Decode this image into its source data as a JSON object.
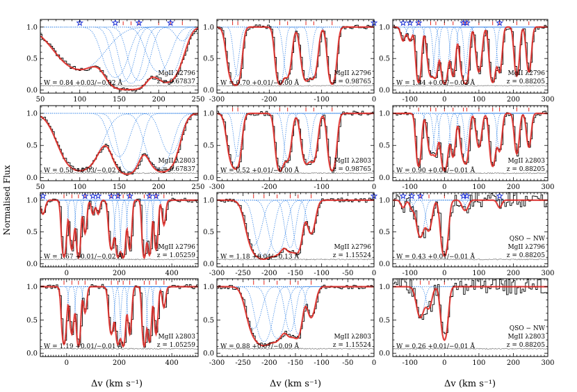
{
  "figure": {
    "ylabel": "Normalised Flux",
    "xlabel": "Δv (km s⁻¹)",
    "colors": {
      "data": "#000000",
      "model": "#e3261f",
      "component": "#1f77e4",
      "star": "#1a2fd6",
      "error": "#888888"
    }
  },
  "chart_data": [
    {
      "type": "line",
      "id": "p11",
      "ion": "MgII λ2796",
      "z_label": "z = 0.67837",
      "W_label": "W = 0.84 +0.03/−0.02 Å",
      "xlim": [
        50,
        250
      ],
      "xticks": [
        50,
        100,
        150,
        200,
        250
      ],
      "ylim": [
        -0.05,
        1.12
      ],
      "yticks": [
        0.0,
        0.5,
        1.0
      ],
      "components": [
        {
          "v": 100,
          "d": 0.45,
          "w": 25,
          "star": true,
          "tick": false
        },
        {
          "v": 145,
          "d": 0.65,
          "w": 12,
          "star": true,
          "tick": false
        },
        {
          "v": 155,
          "d": 0.8,
          "w": 10,
          "star": false,
          "tick": true
        },
        {
          "v": 165,
          "d": 0.9,
          "w": 10,
          "star": false,
          "tick": true
        },
        {
          "v": 175,
          "d": 0.75,
          "w": 10,
          "star": true,
          "tick": true
        },
        {
          "v": 200,
          "d": 0.5,
          "w": 12,
          "star": false,
          "tick": true
        },
        {
          "v": 215,
          "d": 0.55,
          "w": 10,
          "star": true,
          "tick": true
        },
        {
          "v": 230,
          "d": 0.1,
          "w": 8,
          "star": false,
          "tick": true
        }
      ],
      "show_xticklabels": true,
      "show_ylabel_ticks": true
    },
    {
      "type": "line",
      "id": "p12",
      "ion": "MgII λ2796",
      "z_label": "z = 0.98765",
      "W_label": "W = 0.70 +0.01/−0.00 Å",
      "xlim": [
        -300,
        0
      ],
      "xticks": [
        -300,
        -200,
        -100,
        0
      ],
      "ylim": [
        -0.05,
        1.12
      ],
      "yticks": [
        0.0,
        0.5,
        1.0
      ],
      "components": [
        {
          "v": -270,
          "d": 0.75,
          "w": 8,
          "star": false,
          "tick": true
        },
        {
          "v": -260,
          "d": 0.6,
          "w": 6,
          "star": false,
          "tick": true
        },
        {
          "v": -180,
          "d": 0.95,
          "w": 6,
          "star": false,
          "tick": true
        },
        {
          "v": -165,
          "d": 0.6,
          "w": 6,
          "star": false,
          "tick": true
        },
        {
          "v": -130,
          "d": 0.75,
          "w": 7,
          "star": false,
          "tick": true
        },
        {
          "v": -115,
          "d": 0.6,
          "w": 6,
          "star": false,
          "tick": true
        },
        {
          "v": -80,
          "d": 0.95,
          "w": 6,
          "star": false,
          "tick": true
        },
        {
          "v": 0,
          "d": 0.0,
          "w": 5,
          "star": true,
          "tick": false
        }
      ],
      "show_xticklabels": true,
      "show_ylabel_ticks": false
    },
    {
      "type": "line",
      "id": "p13",
      "ion": "MgII λ2796",
      "z_label": "z = 0.88205",
      "W_label": "W = 1.34 +0.02/−0.02 Å",
      "xlim": [
        -150,
        300
      ],
      "xticks": [
        -100,
        0,
        100,
        200,
        300
      ],
      "ylim": [
        -0.05,
        1.12
      ],
      "yticks": [
        0.0,
        0.5,
        1.0
      ],
      "components": [
        {
          "v": -120,
          "d": 0.1,
          "w": 6,
          "star": true,
          "tick": false
        },
        {
          "v": -100,
          "d": 0.1,
          "w": 6,
          "star": true,
          "tick": false
        },
        {
          "v": -75,
          "d": 0.85,
          "w": 6,
          "star": true,
          "tick": true
        },
        {
          "v": -40,
          "d": 0.6,
          "w": 8,
          "star": false,
          "tick": true
        },
        {
          "v": -25,
          "d": 0.55,
          "w": 6,
          "star": false,
          "tick": true
        },
        {
          "v": 0,
          "d": 0.95,
          "w": 8,
          "star": false,
          "tick": true
        },
        {
          "v": 25,
          "d": 0.6,
          "w": 6,
          "star": false,
          "tick": true
        },
        {
          "v": 55,
          "d": 0.65,
          "w": 8,
          "star": true,
          "tick": true
        },
        {
          "v": 65,
          "d": 0.55,
          "w": 6,
          "star": true,
          "tick": true
        },
        {
          "v": 100,
          "d": 0.5,
          "w": 7,
          "star": false,
          "tick": true
        },
        {
          "v": 140,
          "d": 0.85,
          "w": 7,
          "star": false,
          "tick": true
        },
        {
          "v": 160,
          "d": 0.5,
          "w": 6,
          "star": true,
          "tick": true
        },
        {
          "v": 210,
          "d": 0.6,
          "w": 6,
          "star": false,
          "tick": true
        },
        {
          "v": 245,
          "d": 0.5,
          "w": 6,
          "star": false,
          "tick": true
        }
      ],
      "show_xticklabels": true,
      "show_ylabel_ticks": false
    },
    {
      "type": "line",
      "id": "p21",
      "ion": "MgII λ2803",
      "z_label": "z = 0.67837",
      "W_label": "W = 0.58 +0.03/−0.02 Å",
      "xlim": [
        50,
        250
      ],
      "xticks": [
        50,
        100,
        150,
        200,
        250
      ],
      "ylim": [
        -0.05,
        1.12
      ],
      "yticks": [
        0.0,
        0.5,
        1.0
      ],
      "components": [
        {
          "v": 100,
          "d": 0.9,
          "w": 18,
          "star": false,
          "tick": false
        },
        {
          "v": 150,
          "d": 0.45,
          "w": 10,
          "star": false,
          "tick": false
        },
        {
          "v": 163,
          "d": 0.95,
          "w": 10,
          "star": false,
          "tick": false
        },
        {
          "v": 200,
          "d": 0.8,
          "w": 12,
          "star": false,
          "tick": false
        },
        {
          "v": 215,
          "d": 0.4,
          "w": 10,
          "star": false,
          "tick": false
        }
      ],
      "show_xticklabels": true,
      "show_ylabel_ticks": true
    },
    {
      "type": "line",
      "id": "p22",
      "ion": "MgII λ2803",
      "z_label": "z = 0.98765",
      "W_label": "W = 0.52 +0.01/−0.00 Å",
      "xlim": [
        -300,
        0
      ],
      "xticks": [
        -300,
        -200,
        -100,
        0
      ],
      "ylim": [
        -0.05,
        1.12
      ],
      "yticks": [
        0.0,
        0.5,
        1.0
      ],
      "components": [
        {
          "v": -270,
          "d": 0.6,
          "w": 8,
          "star": false,
          "tick": true
        },
        {
          "v": -260,
          "d": 0.45,
          "w": 6,
          "star": false,
          "tick": true
        },
        {
          "v": -180,
          "d": 0.9,
          "w": 6,
          "star": false,
          "tick": true
        },
        {
          "v": -165,
          "d": 0.5,
          "w": 6,
          "star": false,
          "tick": true
        },
        {
          "v": -130,
          "d": 0.6,
          "w": 7,
          "star": false,
          "tick": true
        },
        {
          "v": -115,
          "d": 0.5,
          "w": 6,
          "star": false,
          "tick": true
        },
        {
          "v": -80,
          "d": 0.9,
          "w": 6,
          "star": false,
          "tick": true
        }
      ],
      "show_xticklabels": true,
      "show_ylabel_ticks": false
    },
    {
      "type": "line",
      "id": "p23",
      "ion": "MgII λ2803",
      "z_label": "z = 0.88205",
      "W_label": "W = 0.90 +0.01/−0.01 Å",
      "xlim": [
        -150,
        300
      ],
      "xticks": [
        -100,
        0,
        100,
        200,
        300
      ],
      "ylim": [
        -0.05,
        1.12
      ],
      "yticks": [
        0.0,
        0.5,
        1.0
      ],
      "components": [
        {
          "v": -75,
          "d": 0.7,
          "w": 6,
          "star": false,
          "tick": true
        },
        {
          "v": -40,
          "d": 0.4,
          "w": 8,
          "star": false,
          "tick": true
        },
        {
          "v": -25,
          "d": 0.35,
          "w": 6,
          "star": false,
          "tick": true
        },
        {
          "v": 0,
          "d": 0.9,
          "w": 8,
          "star": false,
          "tick": true
        },
        {
          "v": 25,
          "d": 0.45,
          "w": 6,
          "star": false,
          "tick": true
        },
        {
          "v": 55,
          "d": 0.45,
          "w": 8,
          "star": false,
          "tick": true
        },
        {
          "v": 65,
          "d": 0.35,
          "w": 6,
          "star": false,
          "tick": true
        },
        {
          "v": 100,
          "d": 0.3,
          "w": 7,
          "star": false,
          "tick": true
        },
        {
          "v": 140,
          "d": 0.7,
          "w": 7,
          "star": false,
          "tick": true
        },
        {
          "v": 160,
          "d": 0.35,
          "w": 6,
          "star": false,
          "tick": true
        },
        {
          "v": 210,
          "d": 0.4,
          "w": 6,
          "star": false,
          "tick": true
        },
        {
          "v": 245,
          "d": 0.3,
          "w": 6,
          "star": false,
          "tick": true
        }
      ],
      "show_xticklabels": true,
      "show_ylabel_ticks": false
    },
    {
      "type": "line",
      "id": "p31",
      "ion": "MgII λ2796",
      "z_label": "z = 1.05259",
      "W_label": "W = 1.67 +0.01/−0.02 Å",
      "xlim": [
        -100,
        500
      ],
      "xticks": [
        0,
        200,
        400
      ],
      "ylim": [
        -0.05,
        1.12
      ],
      "yticks": [
        0.0,
        0.5,
        1.0
      ],
      "components": [
        {
          "v": -90,
          "d": 0.1,
          "w": 8,
          "star": true,
          "tick": false
        },
        {
          "v": -10,
          "d": 0.9,
          "w": 7,
          "star": false,
          "tick": true
        },
        {
          "v": 20,
          "d": 0.6,
          "w": 7,
          "star": false,
          "tick": true
        },
        {
          "v": 45,
          "d": 0.95,
          "w": 6,
          "star": false,
          "tick": true
        },
        {
          "v": 70,
          "d": 0.3,
          "w": 6,
          "star": true,
          "tick": true
        },
        {
          "v": 100,
          "d": 0.1,
          "w": 6,
          "star": true,
          "tick": false
        },
        {
          "v": 120,
          "d": 0.1,
          "w": 6,
          "star": true,
          "tick": false
        },
        {
          "v": 170,
          "d": 0.6,
          "w": 8,
          "star": true,
          "tick": true
        },
        {
          "v": 195,
          "d": 0.9,
          "w": 7,
          "star": true,
          "tick": true
        },
        {
          "v": 215,
          "d": 0.95,
          "w": 7,
          "star": false,
          "tick": true
        },
        {
          "v": 240,
          "d": 0.6,
          "w": 6,
          "star": true,
          "tick": true
        },
        {
          "v": 295,
          "d": 0.95,
          "w": 6,
          "star": false,
          "tick": true
        },
        {
          "v": 315,
          "d": 0.8,
          "w": 6,
          "star": true,
          "tick": true
        },
        {
          "v": 340,
          "d": 0.6,
          "w": 6,
          "star": true,
          "tick": true
        },
        {
          "v": 370,
          "d": 0.2,
          "w": 6,
          "star": false,
          "tick": true
        }
      ],
      "show_xticklabels": true,
      "show_ylabel_ticks": true
    },
    {
      "type": "line",
      "id": "p32",
      "ion": "MgII λ2796",
      "z_label": "z = 1.15524",
      "W_label": "W = 1.18 +0.04/−0.13 Å",
      "xlim": [
        -300,
        0
      ],
      "xticks": [
        -300,
        -250,
        -200,
        -150,
        -100,
        -50,
        0
      ],
      "ylim": [
        -0.05,
        1.12
      ],
      "yticks": [
        0.0,
        0.5,
        1.0
      ],
      "components": [
        {
          "v": -230,
          "d": 0.5,
          "w": 12,
          "star": false,
          "tick": true
        },
        {
          "v": -210,
          "d": 0.85,
          "w": 12,
          "star": false,
          "tick": true
        },
        {
          "v": -185,
          "d": 0.7,
          "w": 12,
          "star": false,
          "tick": true
        },
        {
          "v": -160,
          "d": 0.55,
          "w": 8,
          "star": false,
          "tick": true
        },
        {
          "v": -145,
          "d": 0.6,
          "w": 7,
          "star": false,
          "tick": true
        },
        {
          "v": -120,
          "d": 0.3,
          "w": 7,
          "star": false,
          "tick": true
        },
        {
          "v": 0,
          "d": 0.0,
          "w": 5,
          "star": true,
          "tick": false
        }
      ],
      "show_xticklabels": true,
      "show_ylabel_ticks": false
    },
    {
      "type": "line",
      "id": "p33",
      "ion": "MgII λ2796",
      "z_label": "z = 0.88205",
      "W_label": "W = 0.43 +0.01/−0.01 Å",
      "extra_label": "QSO − NW",
      "xlim": [
        -150,
        300
      ],
      "xticks": [
        -100,
        0,
        100,
        200,
        300
      ],
      "ylim": [
        -0.05,
        1.12
      ],
      "yticks": [
        0.0,
        0.5,
        1.0
      ],
      "components": [
        {
          "v": -120,
          "d": 0.05,
          "w": 6,
          "star": true,
          "tick": false
        },
        {
          "v": -95,
          "d": 0.05,
          "w": 6,
          "star": true,
          "tick": false
        },
        {
          "v": -70,
          "d": 0.35,
          "w": 10,
          "star": true,
          "tick": true
        },
        {
          "v": -45,
          "d": 0.25,
          "w": 8,
          "star": false,
          "tick": true
        },
        {
          "v": 0,
          "d": 0.85,
          "w": 8,
          "star": false,
          "tick": true
        },
        {
          "v": 55,
          "d": 0.05,
          "w": 6,
          "star": true,
          "tick": false
        },
        {
          "v": 65,
          "d": 0.05,
          "w": 6,
          "star": true,
          "tick": false
        },
        {
          "v": 160,
          "d": 0.05,
          "w": 6,
          "star": true,
          "tick": false
        }
      ],
      "show_xticklabels": true,
      "show_ylabel_ticks": false
    },
    {
      "type": "line",
      "id": "p41",
      "ion": "MgII λ2803",
      "z_label": "z = 1.05259",
      "W_label": "W = 1.19 +0.01/−0.01 Å",
      "xlim": [
        -100,
        500
      ],
      "xticks": [
        0,
        200,
        400
      ],
      "ylim": [
        -0.05,
        1.12
      ],
      "yticks": [
        0.0,
        0.5,
        1.0
      ],
      "components": [
        {
          "v": -10,
          "d": 0.8,
          "w": 7,
          "star": false,
          "tick": true
        },
        {
          "v": 20,
          "d": 0.5,
          "w": 7,
          "star": false,
          "tick": true
        },
        {
          "v": 45,
          "d": 0.9,
          "w": 6,
          "star": false,
          "tick": true
        },
        {
          "v": 70,
          "d": 0.2,
          "w": 6,
          "star": false,
          "tick": true
        },
        {
          "v": 170,
          "d": 0.5,
          "w": 8,
          "star": false,
          "tick": true
        },
        {
          "v": 195,
          "d": 0.8,
          "w": 7,
          "star": false,
          "tick": true
        },
        {
          "v": 215,
          "d": 0.9,
          "w": 7,
          "star": false,
          "tick": true
        },
        {
          "v": 240,
          "d": 0.5,
          "w": 6,
          "star": false,
          "tick": true
        },
        {
          "v": 295,
          "d": 0.9,
          "w": 6,
          "star": false,
          "tick": true
        },
        {
          "v": 315,
          "d": 0.7,
          "w": 6,
          "star": false,
          "tick": true
        },
        {
          "v": 340,
          "d": 0.5,
          "w": 6,
          "star": false,
          "tick": true
        },
        {
          "v": 370,
          "d": 0.15,
          "w": 6,
          "star": false,
          "tick": true
        }
      ],
      "show_xticklabels": true,
      "show_ylabel_ticks": true
    },
    {
      "type": "line",
      "id": "p42",
      "ion": "MgII λ2803",
      "z_label": "z = 1.15524",
      "W_label": "W = 0.88 +0.07/−0.09 Å",
      "xlim": [
        -300,
        0
      ],
      "xticks": [
        -300,
        -250,
        -200,
        -150,
        -100,
        -50,
        0
      ],
      "ylim": [
        -0.05,
        1.12
      ],
      "yticks": [
        0.0,
        0.5,
        1.0
      ],
      "components": [
        {
          "v": -230,
          "d": 0.4,
          "w": 12,
          "star": false,
          "tick": true
        },
        {
          "v": -210,
          "d": 0.7,
          "w": 12,
          "star": false,
          "tick": true
        },
        {
          "v": -185,
          "d": 0.6,
          "w": 12,
          "star": false,
          "tick": true
        },
        {
          "v": -160,
          "d": 0.45,
          "w": 8,
          "star": false,
          "tick": true
        },
        {
          "v": -145,
          "d": 0.5,
          "w": 7,
          "star": false,
          "tick": true
        },
        {
          "v": -120,
          "d": 0.25,
          "w": 7,
          "star": false,
          "tick": true
        }
      ],
      "show_xticklabels": true,
      "show_ylabel_ticks": false
    },
    {
      "type": "line",
      "id": "p43",
      "ion": "MgII λ2803",
      "z_label": "z = 0.88205",
      "W_label": "W = 0.26 +0.01/−0.01 Å",
      "extra_label": "QSO − NW",
      "xlim": [
        -150,
        300
      ],
      "xticks": [
        -100,
        0,
        100,
        200,
        300
      ],
      "ylim": [
        -0.05,
        1.12
      ],
      "yticks": [
        0.0,
        0.5,
        1.0
      ],
      "components": [
        {
          "v": -70,
          "d": 0.25,
          "w": 10,
          "star": false,
          "tick": true
        },
        {
          "v": -45,
          "d": 0.15,
          "w": 8,
          "star": false,
          "tick": true
        },
        {
          "v": 0,
          "d": 0.65,
          "w": 8,
          "star": false,
          "tick": true
        }
      ],
      "show_xticklabels": true,
      "show_ylabel_ticks": false
    }
  ]
}
